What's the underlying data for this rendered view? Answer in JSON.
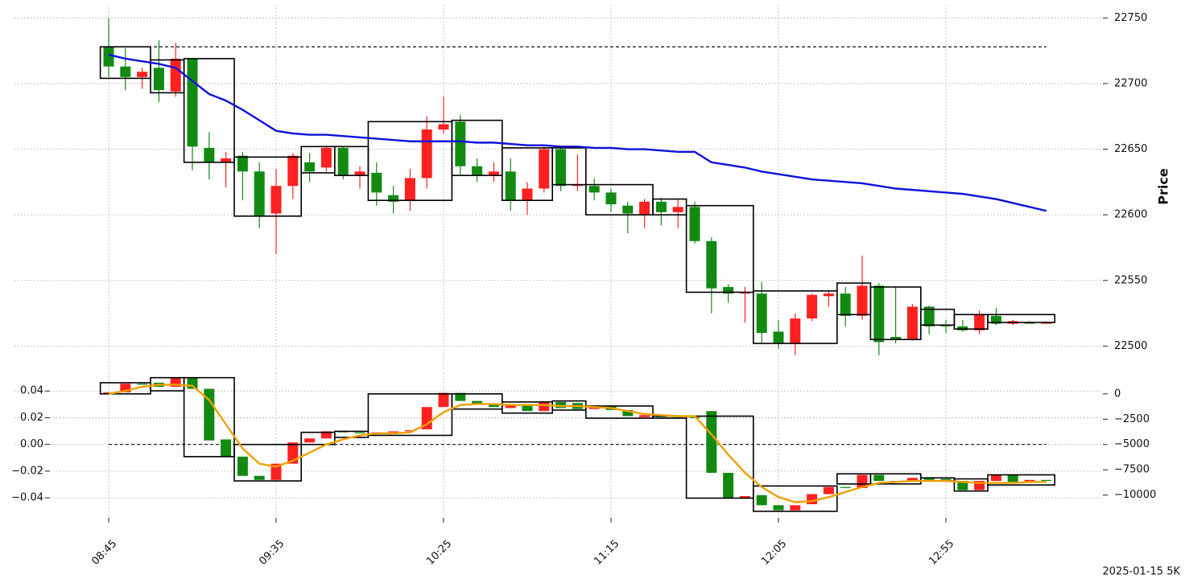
{
  "chart_data": [
    {
      "type": "candlestick",
      "ylabel": "Price",
      "footer": "2025-01-15 5K",
      "categories": [
        "08:45",
        null,
        null,
        null,
        null,
        null,
        null,
        null,
        null,
        null,
        "09:35",
        null,
        null,
        null,
        null,
        null,
        null,
        null,
        null,
        null,
        "10:25",
        null,
        null,
        null,
        null,
        null,
        null,
        null,
        null,
        null,
        "11:15",
        null,
        null,
        null,
        null,
        null,
        null,
        null,
        null,
        null,
        "12:05",
        null,
        null,
        null,
        null,
        null,
        null,
        null,
        null,
        null,
        "12:55",
        null,
        null,
        null,
        null,
        null,
        null
      ],
      "open": [
        22728,
        22713,
        22705,
        22712,
        22694,
        22719,
        22651,
        22640,
        22645,
        22633,
        22601,
        22622,
        22640,
        22636,
        22651,
        22630,
        22632,
        22615,
        22611,
        22628,
        22665,
        22671,
        22637,
        22630,
        22633,
        22611,
        22620,
        22650,
        22622,
        22622,
        22617,
        22607,
        22600,
        22610,
        22602,
        22606,
        22580,
        22545,
        22540,
        22540,
        22511,
        22502,
        22521,
        22538,
        22540,
        22523,
        22546,
        22507,
        22505,
        22530,
        22516,
        22515,
        22512,
        22523,
        22517,
        22518,
        22517
      ],
      "high": [
        22750,
        22727,
        22712,
        22733,
        22731,
        22719,
        22663,
        22648,
        22648,
        22640,
        22635,
        22647,
        22647,
        22652,
        22652,
        22637,
        22640,
        22622,
        22635,
        22675,
        22690,
        22676,
        22643,
        22640,
        22643,
        22625,
        22652,
        22652,
        22646,
        22628,
        22620,
        22610,
        22612,
        22613,
        22612,
        22610,
        22583,
        22547,
        22545,
        22549,
        22520,
        22525,
        22540,
        22542,
        22545,
        22569,
        22548,
        22545,
        22532,
        22531,
        22520,
        22520,
        22527,
        22529,
        22520,
        22519,
        22519
      ],
      "low": [
        22705,
        22695,
        22696,
        22686,
        22690,
        22634,
        22627,
        22621,
        22611,
        22590,
        22570,
        22612,
        22625,
        22633,
        22627,
        22620,
        22607,
        22601,
        22603,
        22620,
        22662,
        22630,
        22625,
        22625,
        22603,
        22600,
        22617,
        22618,
        22618,
        22611,
        22602,
        22586,
        22590,
        22592,
        22590,
        22578,
        22525,
        22533,
        22518,
        22502,
        22498,
        22493,
        22519,
        22530,
        22515,
        22520,
        22493,
        22502,
        22504,
        22509,
        22510,
        22511,
        22509,
        22516,
        22516,
        22517,
        22517
      ],
      "close": [
        22713,
        22705,
        22709,
        22695,
        22719,
        22652,
        22640,
        22643,
        22633,
        22599,
        22622,
        22645,
        22633,
        22651,
        22630,
        22633,
        22617,
        22610,
        22628,
        22665,
        22669,
        22637,
        22630,
        22633,
        22611,
        22620,
        22650,
        22622,
        22623,
        22617,
        22608,
        22601,
        22610,
        22602,
        22606,
        22580,
        22544,
        22540,
        22541,
        22510,
        22502,
        22521,
        22539,
        22540,
        22523,
        22546,
        22503,
        22505,
        22530,
        22515,
        22515,
        22512,
        22524,
        22517,
        22519,
        22517,
        22518
      ],
      "up_color": "#ff2020",
      "down_color": "#128a12",
      "boxes": [
        {
          "start": 0,
          "end": 2,
          "high": 22728,
          "low": 22704
        },
        {
          "start": 3,
          "end": 4,
          "high": 22718,
          "low": 22693
        },
        {
          "start": 5,
          "end": 7,
          "high": 22719,
          "low": 22640
        },
        {
          "start": 8,
          "end": 11,
          "high": 22644,
          "low": 22599
        },
        {
          "start": 12,
          "end": 13,
          "high": 22652,
          "low": 22632
        },
        {
          "start": 14,
          "end": 15,
          "high": 22652,
          "low": 22630
        },
        {
          "start": 16,
          "end": 20,
          "high": 22671,
          "low": 22611
        },
        {
          "start": 21,
          "end": 23,
          "high": 22672,
          "low": 22630
        },
        {
          "start": 24,
          "end": 26,
          "high": 22651,
          "low": 22611
        },
        {
          "start": 27,
          "end": 28,
          "high": 22651,
          "low": 22623
        },
        {
          "start": 29,
          "end": 32,
          "high": 22623,
          "low": 22600
        },
        {
          "start": 33,
          "end": 34,
          "high": 22612,
          "low": 22600
        },
        {
          "start": 35,
          "end": 38,
          "high": 22607,
          "low": 22541
        },
        {
          "start": 39,
          "end": 43,
          "high": 22542,
          "low": 22502
        },
        {
          "start": 44,
          "end": 45,
          "high": 22548,
          "low": 22524
        },
        {
          "start": 46,
          "end": 48,
          "high": 22545,
          "low": 22505
        },
        {
          "start": 49,
          "end": 50,
          "high": 22528,
          "low": 22516
        },
        {
          "start": 51,
          "end": 52,
          "high": 22524,
          "low": 22513
        },
        {
          "start": 53,
          "end": 56,
          "high": 22524,
          "low": 22518
        }
      ],
      "lines": [
        {
          "color": "#1010dd",
          "values": [
            22722,
            22719,
            22717,
            22715,
            22712,
            22702,
            22692,
            22687,
            22680,
            22672,
            22664,
            22662,
            22661,
            22661,
            22660,
            22659,
            22658,
            22657,
            22656,
            22656,
            22656,
            22656,
            22655,
            22655,
            22654,
            22653,
            22653,
            22652,
            22652,
            22651,
            22651,
            22650,
            22650,
            22649,
            22648,
            22648,
            22640,
            22638,
            22636,
            22633,
            22631,
            22629,
            22627,
            22626,
            22625,
            22624,
            22622,
            22620,
            22619,
            22618,
            22617,
            22616,
            22614,
            22612,
            22609,
            22606,
            22603
          ]
        }
      ],
      "hline": 22728,
      "ylim": [
        22480,
        22760
      ],
      "yticks": [
        22500,
        22550,
        22600,
        22650,
        22700,
        22750
      ],
      "grid": true
    },
    {
      "type": "candlestick",
      "open": [
        -50,
        150,
        1000,
        1100,
        700,
        1600,
        500,
        -4500,
        -6200,
        -8100,
        -8500,
        -6900,
        -4800,
        -4400,
        -3700,
        -3800,
        -3900,
        -3800,
        -3700,
        -3500,
        -1300,
        100,
        -700,
        -1000,
        -1400,
        -1100,
        -1700,
        -800,
        -900,
        -1500,
        -1200,
        -1600,
        -2300,
        -2100,
        -2300,
        -2300,
        -1700,
        -7800,
        -10300,
        -10000,
        -11000,
        -11500,
        -10900,
        -9900,
        -9200,
        -9300,
        -8000,
        -8600,
        -8600,
        -8300,
        -8400,
        -8600,
        -9500,
        -8600,
        -8000,
        -8700,
        -8500
      ],
      "close": [
        150,
        1000,
        900,
        700,
        1600,
        500,
        -4600,
        -6200,
        -8100,
        -8500,
        -6900,
        -4800,
        -4400,
        -3700,
        -3800,
        -3900,
        -3800,
        -3700,
        -3600,
        -1300,
        100,
        -700,
        -1000,
        -1300,
        -1000,
        -1700,
        -800,
        -1400,
        -1500,
        -1200,
        -1600,
        -2200,
        -2100,
        -2300,
        -2400,
        -2400,
        -7800,
        -10300,
        -10100,
        -11000,
        -11500,
        -11000,
        -9900,
        -9200,
        -9300,
        -8000,
        -8600,
        -8700,
        -8300,
        -8500,
        -8600,
        -9500,
        -8600,
        -8000,
        -8700,
        -8500,
        -8600
      ],
      "up_color": "#ff2020",
      "down_color": "#128a12",
      "boxes": [
        {
          "start": 0,
          "end": 2,
          "high": 1100,
          "low": 0
        },
        {
          "start": 3,
          "end": 4,
          "high": 1600,
          "low": 300
        },
        {
          "start": 5,
          "end": 7,
          "high": 1600,
          "low": -6200
        },
        {
          "start": 8,
          "end": 11,
          "high": -5000,
          "low": -8600
        },
        {
          "start": 12,
          "end": 13,
          "high": -3800,
          "low": -5000
        },
        {
          "start": 14,
          "end": 15,
          "high": -3700,
          "low": -4300
        },
        {
          "start": 16,
          "end": 20,
          "high": 0,
          "low": -4100
        },
        {
          "start": 21,
          "end": 23,
          "high": 0,
          "low": -1500
        },
        {
          "start": 24,
          "end": 26,
          "high": -800,
          "low": -1900
        },
        {
          "start": 27,
          "end": 28,
          "high": -700,
          "low": -1600
        },
        {
          "start": 29,
          "end": 32,
          "high": -1200,
          "low": -2400
        },
        {
          "start": 33,
          "end": 34,
          "high": -2200,
          "low": -2400
        },
        {
          "start": 35,
          "end": 38,
          "high": -2200,
          "low": -10300
        },
        {
          "start": 39,
          "end": 43,
          "high": -9100,
          "low": -11600
        },
        {
          "start": 44,
          "end": 45,
          "high": -7900,
          "low": -8900
        },
        {
          "start": 46,
          "end": 48,
          "high": -7900,
          "low": -8900
        },
        {
          "start": 49,
          "end": 50,
          "high": -8300,
          "low": -8600
        },
        {
          "start": 51,
          "end": 52,
          "high": -8400,
          "low": -9600
        },
        {
          "start": 53,
          "end": 56,
          "high": -8000,
          "low": -9000
        }
      ],
      "lines": [
        {
          "color": "#f0a000",
          "values": [
            0,
            300,
            700,
            900,
            900,
            800,
            -600,
            -3000,
            -5400,
            -6900,
            -7200,
            -6600,
            -5800,
            -5000,
            -4500,
            -4100,
            -3900,
            -3900,
            -3800,
            -3000,
            -1800,
            -1100,
            -1000,
            -1000,
            -1100,
            -1100,
            -1100,
            -1200,
            -1200,
            -1300,
            -1400,
            -1700,
            -2000,
            -2100,
            -2200,
            -2200,
            -4000,
            -6000,
            -7800,
            -9200,
            -10200,
            -10700,
            -10600,
            -10200,
            -9700,
            -9200,
            -8800,
            -8700,
            -8600,
            -8600,
            -8600,
            -8700,
            -8800,
            -8800,
            -8800,
            -8700,
            -8700
          ]
        }
      ],
      "hline": 0,
      "ylim": [
        -0.055,
        0.054
      ],
      "yticks": [
        {
          "value": -0.04,
          "label": "−0.04"
        },
        {
          "value": -0.02,
          "label": "−0.02"
        },
        {
          "value": 0,
          "label": "0.00"
        },
        0.02,
        0.04
      ],
      "y2lim": [
        -12250,
        2130
      ],
      "y2ticks": [
        {
          "value": -10000,
          "label": "−10000"
        },
        {
          "value": -7500,
          "label": "−7500"
        },
        {
          "value": -5000,
          "label": "−5000"
        },
        {
          "value": -2500,
          "label": "−2500"
        },
        0
      ],
      "grid": true
    }
  ]
}
